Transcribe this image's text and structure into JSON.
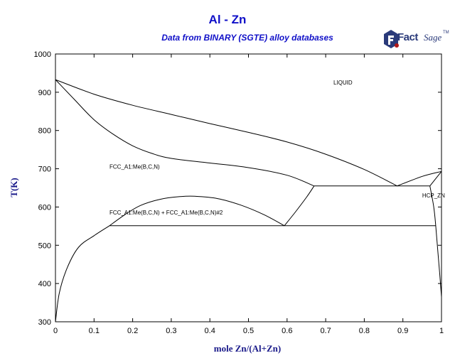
{
  "header": {
    "title": "Al - Zn",
    "subtitle": "Data from BINARY (SGTE) alloy databases"
  },
  "logo": {
    "brand_main": "Fact",
    "brand_sub": "Sage",
    "trademark": "TM",
    "colors": {
      "primary": "#2a3a7a",
      "accent": "#b01818"
    }
  },
  "colors": {
    "title": "#1010c8",
    "axis_label": "#1a1a8a",
    "lines": "#000000"
  },
  "chart_data": {
    "type": "line",
    "title": "Al - Zn",
    "subtitle": "Data from BINARY (SGTE) alloy databases",
    "xlabel": "mole Zn/(Al+Zn)",
    "ylabel": "T(K)",
    "xlim": [
      0,
      1
    ],
    "ylim": [
      300,
      1000
    ],
    "xticks": [
      0,
      0.1,
      0.2,
      0.3,
      0.4,
      0.5,
      0.6,
      0.7,
      0.8,
      0.9,
      1
    ],
    "yticks": [
      300,
      400,
      500,
      600,
      700,
      800,
      900,
      1000
    ],
    "grid": false,
    "regions": [
      {
        "label": "LIQUID",
        "x": 0.72,
        "y": 920
      },
      {
        "label": "FCC_A1:Me(B,C,N)",
        "x": 0.14,
        "y": 700
      },
      {
        "label": "FCC_A1:Me(B,C,N) + FCC_A1:Me(B,C,N)#2",
        "x": 0.14,
        "y": 580
      },
      {
        "label": "HCP_ZN",
        "x": 0.95,
        "y": 625
      }
    ],
    "series": [
      {
        "id": "liquidus-left",
        "values": [
          [
            0,
            933
          ],
          [
            0.1,
            895
          ],
          [
            0.2,
            866
          ],
          [
            0.3,
            842
          ],
          [
            0.4,
            818
          ],
          [
            0.5,
            795
          ],
          [
            0.6,
            770
          ],
          [
            0.7,
            738
          ],
          [
            0.8,
            698
          ],
          [
            0.885,
            655
          ]
        ]
      },
      {
        "id": "solidus-fcc",
        "values": [
          [
            0,
            933
          ],
          [
            0.05,
            880
          ],
          [
            0.1,
            828
          ],
          [
            0.15,
            790
          ],
          [
            0.2,
            760
          ],
          [
            0.25,
            740
          ],
          [
            0.3,
            727
          ],
          [
            0.4,
            715
          ],
          [
            0.5,
            703
          ],
          [
            0.6,
            683
          ],
          [
            0.67,
            655
          ]
        ]
      },
      {
        "id": "fcc-solvus-right",
        "values": [
          [
            0.67,
            655
          ],
          [
            0.65,
            625
          ],
          [
            0.62,
            585
          ],
          [
            0.593,
            551
          ]
        ]
      },
      {
        "id": "miscibility-gap",
        "values": [
          [
            0.14,
            551
          ],
          [
            0.18,
            580
          ],
          [
            0.22,
            604
          ],
          [
            0.27,
            620
          ],
          [
            0.32,
            627
          ],
          [
            0.36,
            628
          ],
          [
            0.42,
            622
          ],
          [
            0.48,
            605
          ],
          [
            0.54,
            580
          ],
          [
            0.593,
            551
          ]
        ]
      },
      {
        "id": "fcc-solvus-left",
        "values": [
          [
            0,
            300
          ],
          [
            0.01,
            375
          ],
          [
            0.03,
            440
          ],
          [
            0.06,
            495
          ],
          [
            0.1,
            525
          ],
          [
            0.14,
            551
          ]
        ]
      },
      {
        "id": "eutectic-isotherm",
        "values": [
          [
            0.67,
            655
          ],
          [
            0.97,
            655
          ]
        ]
      },
      {
        "id": "monotectoid-isotherm",
        "values": [
          [
            0.14,
            551
          ],
          [
            0.985,
            551
          ]
        ]
      },
      {
        "id": "liquidus-right",
        "values": [
          [
            0.885,
            655
          ],
          [
            0.95,
            680
          ],
          [
            1.0,
            693
          ]
        ]
      },
      {
        "id": "hcp-solidus",
        "values": [
          [
            0.97,
            655
          ],
          [
            1.0,
            693
          ]
        ]
      },
      {
        "id": "hcp-solvus",
        "values": [
          [
            0.97,
            655
          ],
          [
            0.98,
            600
          ],
          [
            0.985,
            551
          ],
          [
            0.99,
            490
          ],
          [
            0.995,
            430
          ],
          [
            1.0,
            365
          ]
        ]
      }
    ]
  }
}
